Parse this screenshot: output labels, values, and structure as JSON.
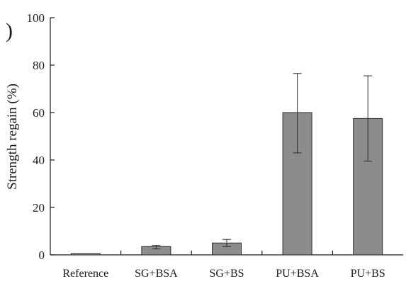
{
  "chart_data": {
    "type": "bar",
    "panel_marker": ")",
    "title": "",
    "xlabel": "",
    "ylabel": "Strength regain (%)",
    "ylim": [
      0,
      100
    ],
    "yticks": [
      0,
      20,
      40,
      60,
      80,
      100
    ],
    "grid": false,
    "categories": [
      "Reference",
      "SG+BSA",
      "SG+BS",
      "PU+BSA",
      "PU+BS"
    ],
    "values": [
      0.5,
      3.5,
      5.0,
      60.0,
      57.5
    ],
    "error_bars": [
      {
        "low": 0.5,
        "high": 0.5
      },
      {
        "low": 2.5,
        "high": 4.0
      },
      {
        "low": 3.5,
        "high": 6.5
      },
      {
        "low": 43.0,
        "high": 76.5
      },
      {
        "low": 39.5,
        "high": 75.5
      }
    ],
    "colors": {
      "bar_fill": "#8c8c8c",
      "bar_stroke": "#2b2b2b",
      "axis": "#1a1a1a",
      "error_bar": "#2b2b2b"
    }
  }
}
